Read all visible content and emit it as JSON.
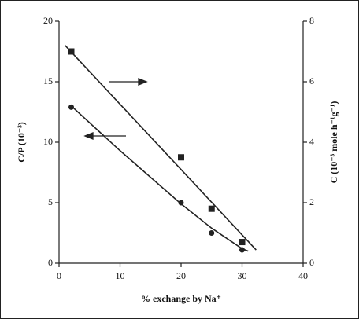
{
  "chart_data": {
    "type": "scatter",
    "xlabel": "% exchange by Na⁺",
    "ylabel": "C/P (10⁻³)",
    "y2label": "C (10⁻³ mole h⁻¹g⁻¹)",
    "xlim": [
      0,
      40
    ],
    "xticks": [
      0,
      10,
      20,
      30,
      40
    ],
    "ylim": [
      0,
      20
    ],
    "yticks": [
      0,
      5,
      10,
      15,
      20
    ],
    "y2lim": [
      0,
      8
    ],
    "y2ticks": [
      0,
      2,
      4,
      6,
      8
    ],
    "series": [
      {
        "mode": "markers",
        "marker": "circle",
        "color": "#222",
        "axis": "y",
        "x": [
          2,
          20,
          25,
          30
        ],
        "values": [
          12.9,
          5.0,
          2.5,
          1.1
        ]
      },
      {
        "mode": "markers",
        "marker": "square",
        "color": "#222",
        "axis": "y2",
        "x": [
          2,
          20,
          25,
          30
        ],
        "values": [
          7.0,
          3.5,
          1.8,
          0.7
        ]
      },
      {
        "mode": "line",
        "color": "#222",
        "axis": "y",
        "x": [
          2,
          10,
          20,
          25,
          30,
          31
        ],
        "values": [
          13.0,
          9.3,
          4.9,
          2.9,
          1.2,
          1.0
        ]
      },
      {
        "mode": "line",
        "color": "#222",
        "axis": "y2",
        "x": [
          1,
          32.3
        ],
        "values": [
          7.2,
          0.44
        ]
      }
    ]
  }
}
